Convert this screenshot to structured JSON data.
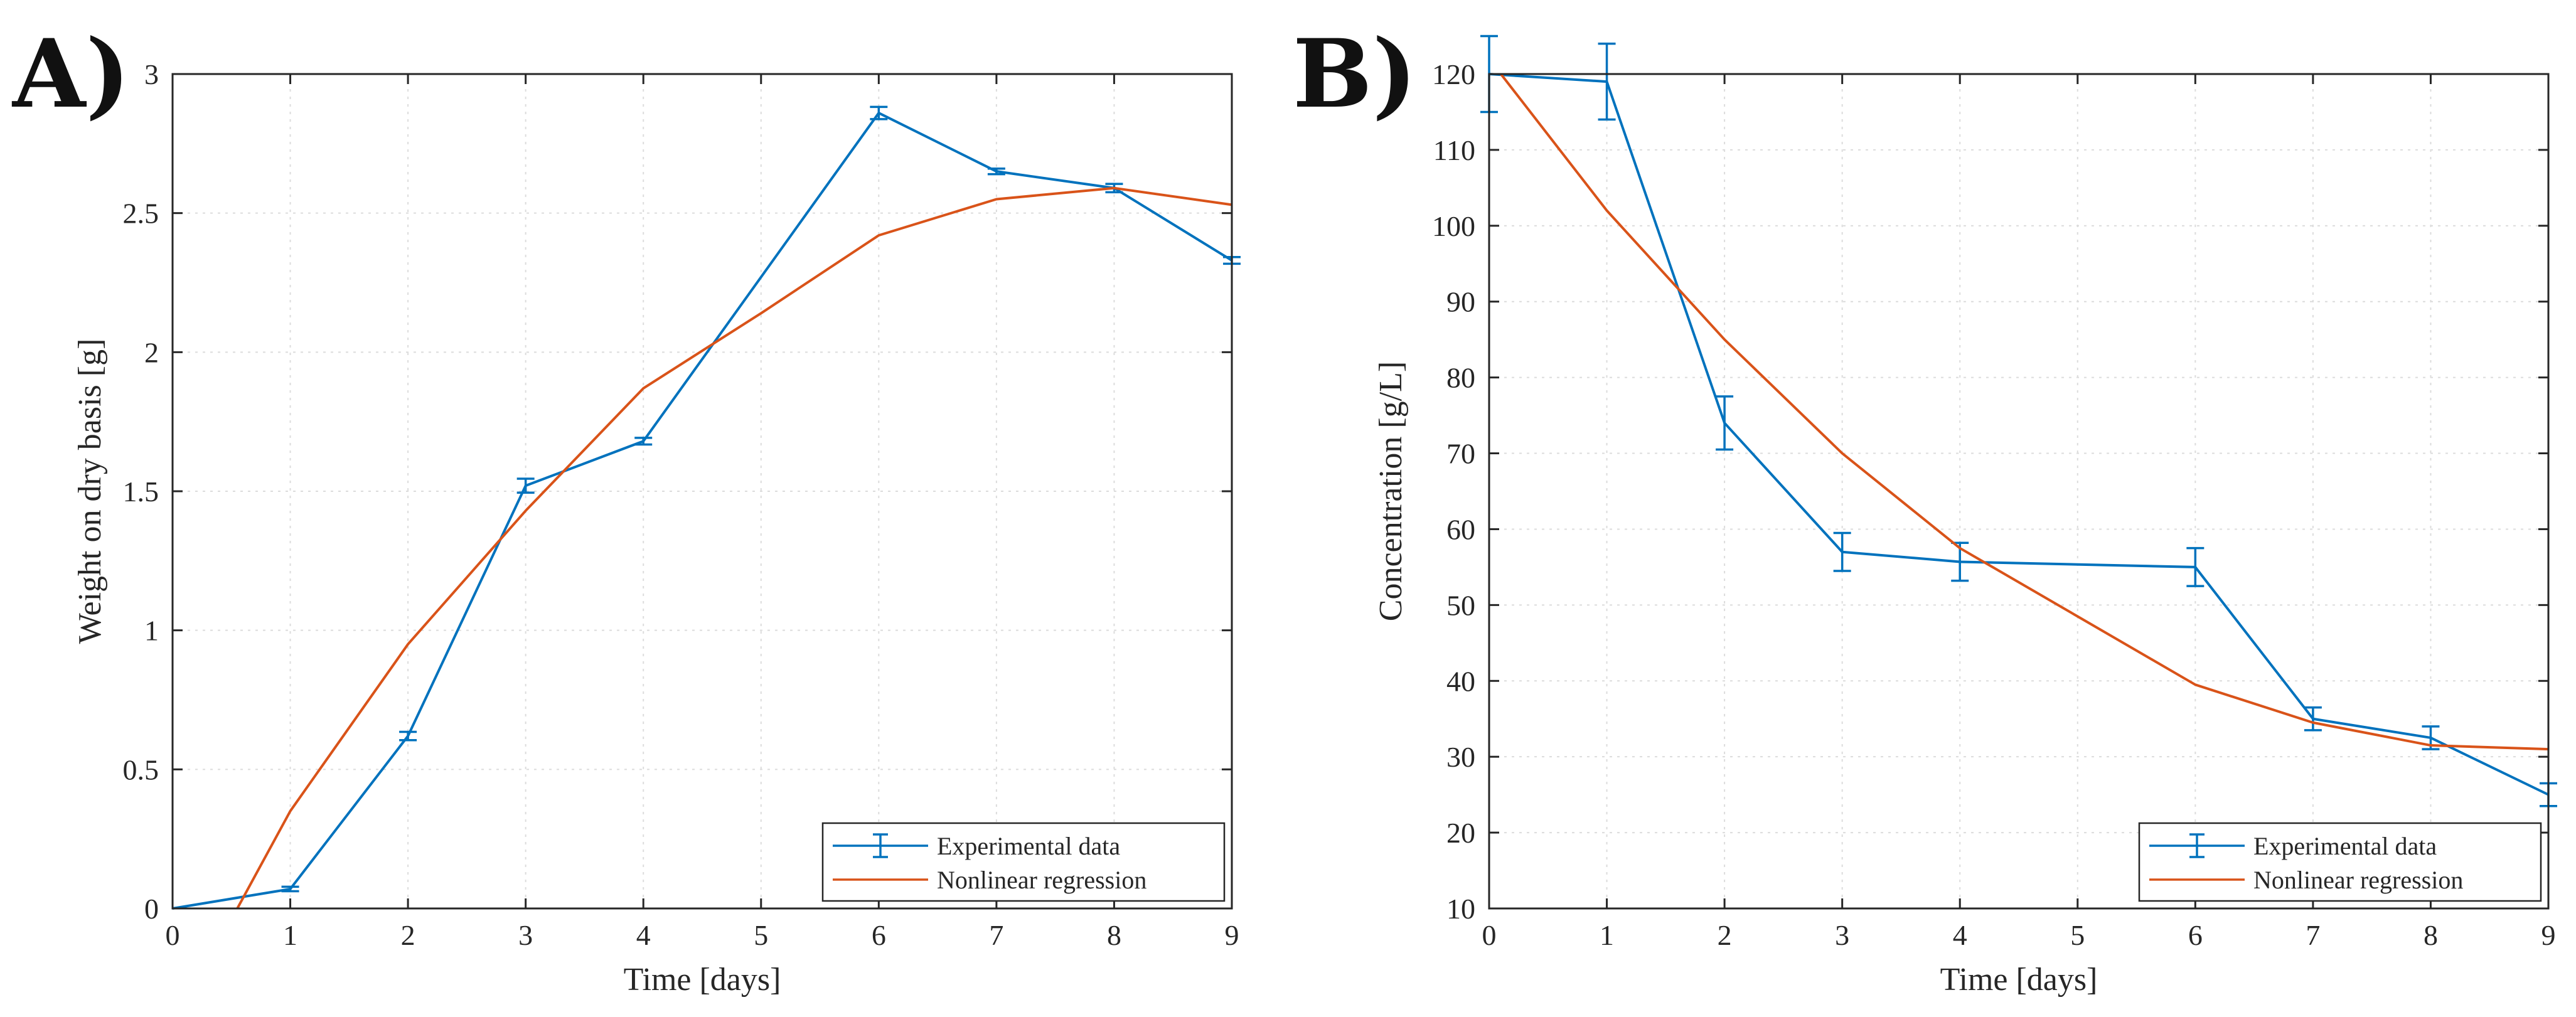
{
  "chart_data": [
    {
      "type": "line",
      "panel_label": "A)",
      "title": "",
      "xlabel": "Time [days]",
      "ylabel": "Weight on dry basis [g]",
      "xlim": [
        0,
        9
      ],
      "ylim": [
        0,
        3
      ],
      "x_ticks": [
        0,
        1,
        2,
        3,
        4,
        5,
        6,
        7,
        8,
        9
      ],
      "x_tick_labels": [
        "0",
        "1",
        "2",
        "3",
        "4",
        "5",
        "6",
        "7",
        "8",
        "9"
      ],
      "y_ticks": [
        0,
        0.5,
        1,
        1.5,
        2,
        2.5,
        3
      ],
      "y_tick_labels": [
        "0",
        "0.5",
        "1",
        "1.5",
        "2",
        "2.5",
        "3"
      ],
      "grid": true,
      "legend_position": "bottom-right",
      "series": [
        {
          "name": "Experimental data",
          "kind": "errorbar",
          "color": "#0072BD",
          "x": [
            0,
            1,
            2,
            3,
            4,
            6,
            7,
            8,
            9
          ],
          "y": [
            0,
            0.07,
            0.62,
            1.52,
            1.68,
            2.86,
            2.65,
            2.59,
            2.33
          ],
          "err": [
            0,
            0.008,
            0.015,
            0.025,
            0.012,
            0.022,
            0.01,
            0.015,
            0.012
          ]
        },
        {
          "name": "Nonlinear regression",
          "kind": "line",
          "color": "#D95319",
          "x": [
            0.55,
            1,
            2,
            3,
            4,
            5,
            6,
            7,
            8,
            9
          ],
          "y": [
            0,
            0.35,
            0.95,
            1.43,
            1.87,
            2.14,
            2.42,
            2.55,
            2.59,
            2.53
          ]
        }
      ]
    },
    {
      "type": "line",
      "panel_label": "B)",
      "title": "",
      "xlabel": "Time [days]",
      "ylabel": "Concentration [g/L]",
      "xlim": [
        0,
        9
      ],
      "ylim": [
        10,
        120
      ],
      "x_ticks": [
        0,
        1,
        2,
        3,
        4,
        5,
        6,
        7,
        8,
        9
      ],
      "x_tick_labels": [
        "0",
        "1",
        "2",
        "3",
        "4",
        "5",
        "6",
        "7",
        "8",
        "9"
      ],
      "y_ticks": [
        10,
        20,
        30,
        40,
        50,
        60,
        70,
        80,
        90,
        100,
        110,
        120
      ],
      "y_tick_labels": [
        "10",
        "20",
        "30",
        "40",
        "50",
        "60",
        "70",
        "80",
        "90",
        "100",
        "110",
        "120"
      ],
      "grid": true,
      "legend_position": "bottom-right",
      "series": [
        {
          "name": "Experimental data",
          "kind": "errorbar",
          "color": "#0072BD",
          "x": [
            0,
            1,
            2,
            3,
            4,
            6,
            7,
            8,
            9
          ],
          "y": [
            120,
            119,
            74,
            57,
            55.7,
            55,
            35,
            32.5,
            25
          ],
          "err": [
            5,
            5,
            3.5,
            2.5,
            2.5,
            2.5,
            1.5,
            1.5,
            1.5
          ]
        },
        {
          "name": "Nonlinear regression",
          "kind": "line",
          "color": "#D95319",
          "x": [
            0.1,
            1,
            2,
            3,
            4,
            5,
            6,
            7,
            8,
            9
          ],
          "y": [
            120,
            102,
            85,
            70,
            57.5,
            48.5,
            39.5,
            34.5,
            31.5,
            31
          ]
        }
      ]
    }
  ]
}
